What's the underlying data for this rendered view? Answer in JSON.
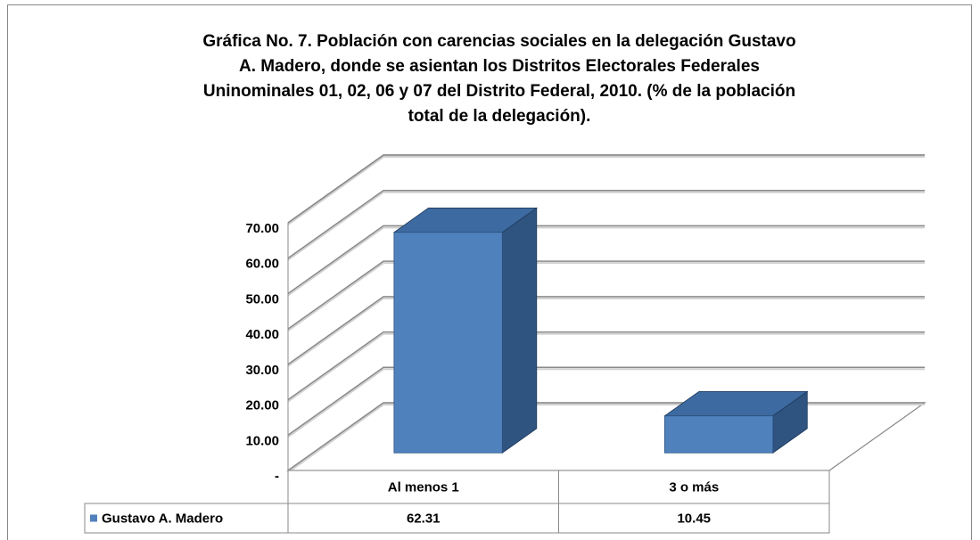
{
  "chart_data": {
    "type": "bar3d",
    "title": [
      "Gráfica No. 7. Población con carencias sociales en la delegación Gustavo",
      "A. Madero, donde se asientan los Distritos Electorales Federales",
      "Uninominales 01, 02, 06 y 07 del Distrito Federal, 2010. (% de la población",
      "total de la delegación)."
    ],
    "categories": [
      "Al menos 1",
      "3 o más"
    ],
    "series": [
      {
        "name": "Gustavo A. Madero",
        "color": "#4f81bd",
        "values": [
          62.31,
          10.45
        ]
      }
    ],
    "ylim": [
      0,
      70
    ],
    "yticks": [
      {
        "value": 0,
        "label": "-"
      },
      {
        "value": 10,
        "label": "10.00"
      },
      {
        "value": 20,
        "label": "20.00"
      },
      {
        "value": 30,
        "label": "30.00"
      },
      {
        "value": 40,
        "label": "40.00"
      },
      {
        "value": 50,
        "label": "50.00"
      },
      {
        "value": 60,
        "label": "60.00"
      },
      {
        "value": 70,
        "label": "70.00"
      }
    ],
    "grid": true,
    "data_table": true
  }
}
